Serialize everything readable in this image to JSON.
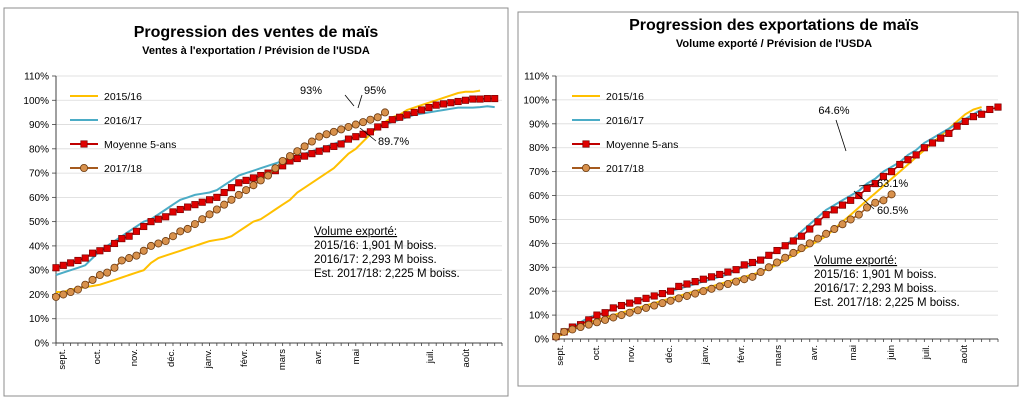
{
  "chart_data": [
    {
      "type": "line",
      "title": "Progression des ventes de maïs",
      "subtitle": "Ventes à l'exportation / Prévision de l'USDA",
      "xlabel": "",
      "ylabel": "",
      "ylim": [
        0,
        110
      ],
      "yticks": [
        "0%",
        "10%",
        "20%",
        "30%",
        "40%",
        "50%",
        "60%",
        "70%",
        "80%",
        "90%",
        "100%",
        "110%"
      ],
      "months": [
        "sept.",
        "oct.",
        "nov.",
        "déc.",
        "janv.",
        "févr.",
        "mars",
        "avr.",
        "mai",
        "juil.",
        "août"
      ],
      "legend_position": "top-left",
      "grid": true,
      "series": [
        {
          "name": "2015/16",
          "color": "#ffc000",
          "marker": "none",
          "values": [
            21,
            21,
            22,
            22.5,
            23,
            23.5,
            24,
            25,
            26,
            27,
            28,
            29,
            30,
            33,
            35,
            36,
            37,
            38,
            39,
            40,
            41,
            42,
            42.5,
            43,
            44,
            46,
            48,
            50,
            51,
            53,
            55,
            57,
            59,
            62,
            64,
            66,
            68,
            70,
            72,
            75,
            78,
            80,
            83,
            86,
            89,
            91,
            93,
            94,
            96,
            97,
            98,
            99,
            100,
            101,
            102,
            103,
            103.5,
            103.5,
            104
          ]
        },
        {
          "name": "2016/17",
          "color": "#4bacc6",
          "marker": "none",
          "values": [
            28,
            29,
            30,
            31,
            32,
            35,
            38,
            40,
            42,
            44,
            46,
            48,
            50,
            51,
            53,
            55,
            57,
            59,
            60,
            61,
            61.5,
            62,
            63,
            65,
            67,
            69,
            70,
            71,
            72,
            73,
            74,
            75,
            76,
            77,
            78,
            79,
            80,
            81,
            82,
            83,
            84,
            85,
            86,
            87,
            89,
            90,
            91,
            92,
            93,
            94,
            94.5,
            95,
            95.5,
            96,
            96.5,
            97,
            97,
            97,
            97.2,
            97.5,
            97.2
          ]
        },
        {
          "name": "Moyenne 5-ans",
          "color": "#c00000",
          "marker": "square",
          "values": [
            31,
            32,
            33,
            34,
            35,
            37,
            38,
            39,
            41,
            43,
            44,
            46,
            48,
            50,
            51,
            52,
            54,
            55,
            56,
            57,
            58,
            59,
            60,
            62,
            64,
            66,
            67,
            68,
            69,
            70,
            71,
            73,
            75,
            76,
            77,
            78,
            79,
            80,
            81,
            82,
            84,
            85,
            86,
            87,
            89,
            90,
            92,
            93,
            94,
            95,
            96,
            97,
            98,
            98.5,
            99,
            99.5,
            100,
            100.5,
            100.5,
            100.7,
            100.7
          ]
        },
        {
          "name": "2017/18",
          "color": "#a55a1e",
          "marker": "circle",
          "values": [
            19,
            20,
            21,
            22,
            24,
            26,
            28,
            29,
            31,
            34,
            35,
            36,
            38,
            40,
            41,
            42,
            44,
            46,
            47,
            49,
            51,
            53,
            55,
            57,
            59,
            61,
            63,
            65,
            67,
            69,
            72,
            75,
            77,
            79,
            81,
            83,
            85,
            86,
            87,
            88,
            89,
            90,
            91,
            92,
            93,
            95
          ]
        }
      ],
      "annotations": [
        {
          "text": "93%",
          "x_index": 43,
          "y": 93
        },
        {
          "text": "95%",
          "x_index": 45,
          "y": 95
        },
        {
          "text": "89.7%",
          "x_index": 45,
          "y": 89.7
        }
      ],
      "note": [
        "Volume exporté:",
        "2015/16: 1,901 M boiss.",
        "2016/17: 2,293 M boiss.",
        "Est. 2017/18: 2,225 M boiss."
      ]
    },
    {
      "type": "line",
      "title": "Progression des exportations de maïs",
      "subtitle": "Volume exporté / Prévision de l'USDA",
      "xlabel": "",
      "ylabel": "",
      "ylim": [
        0,
        110
      ],
      "yticks": [
        "0%",
        "10%",
        "20%",
        "30%",
        "40%",
        "50%",
        "60%",
        "70%",
        "80%",
        "90%",
        "100%",
        "110%"
      ],
      "months": [
        "sept.",
        "oct.",
        "nov.",
        "déc.",
        "janv.",
        "févr.",
        "mars",
        "avr.",
        "mai",
        "juin",
        "juil.",
        "août"
      ],
      "legend_position": "top-left",
      "grid": true,
      "series": [
        {
          "name": "2015/16",
          "color": "#ffc000",
          "marker": "none",
          "values": [
            1,
            2,
            4,
            6,
            7,
            8,
            9,
            10,
            11,
            12,
            13,
            14,
            15,
            16,
            17,
            18,
            19,
            20,
            21,
            22,
            23,
            24,
            25,
            26,
            27,
            28,
            29.5,
            31,
            33,
            35,
            37,
            39,
            41,
            43,
            46,
            49,
            52,
            55,
            58,
            61,
            64,
            67,
            70,
            73,
            76,
            79,
            82,
            85,
            88,
            91,
            94,
            96,
            97
          ]
        },
        {
          "name": "2016/17",
          "color": "#4bacc6",
          "marker": "none",
          "values": [
            1,
            3,
            5,
            7,
            9,
            10,
            11,
            13,
            14,
            15,
            16,
            17,
            18,
            19,
            20,
            21,
            22,
            23,
            24,
            25,
            26,
            27,
            29,
            30,
            31,
            33,
            35,
            37,
            39,
            42,
            45,
            48,
            51,
            54,
            56,
            58,
            60,
            62,
            65,
            67,
            70,
            72,
            74,
            77,
            79,
            82,
            84,
            86,
            88,
            90,
            92,
            94,
            96
          ]
        },
        {
          "name": "Moyenne 5-ans",
          "color": "#c00000",
          "marker": "square",
          "values": [
            1,
            3,
            5,
            6,
            8,
            10,
            11,
            13,
            14,
            15,
            16,
            17,
            18,
            19,
            20,
            22,
            23,
            24,
            25,
            26,
            27,
            28,
            29,
            31,
            32,
            33,
            35,
            37,
            39,
            41,
            43,
            46,
            49,
            52,
            54,
            56,
            58,
            60,
            63,
            65,
            68,
            70,
            73,
            75,
            77,
            80,
            82,
            84,
            86,
            89,
            91,
            93,
            94,
            96,
            97
          ]
        },
        {
          "name": "2017/18",
          "color": "#a55a1e",
          "marker": "circle",
          "values": [
            1,
            3,
            4,
            5,
            6,
            7,
            8,
            9,
            10,
            11,
            12,
            13,
            14,
            15,
            16,
            17,
            18,
            19,
            20,
            21,
            22,
            23,
            24,
            25,
            26,
            28,
            30,
            32,
            34,
            36,
            38,
            40,
            42,
            44,
            46,
            48,
            50,
            52,
            55,
            57,
            58,
            60.5
          ]
        }
      ],
      "annotations": [
        {
          "text": "64.6%",
          "x_index": 40,
          "y": 64.6
        },
        {
          "text": "63.1%",
          "x_index": 41,
          "y": 63.1
        },
        {
          "text": "60.5%",
          "x_index": 41,
          "y": 60.5
        }
      ],
      "note": [
        "Volume exporté:",
        "2015/16: 1,901 M boiss.",
        "2016/17: 2,293 M boiss.",
        "Est. 2017/18: 2,225 M boiss."
      ]
    }
  ]
}
